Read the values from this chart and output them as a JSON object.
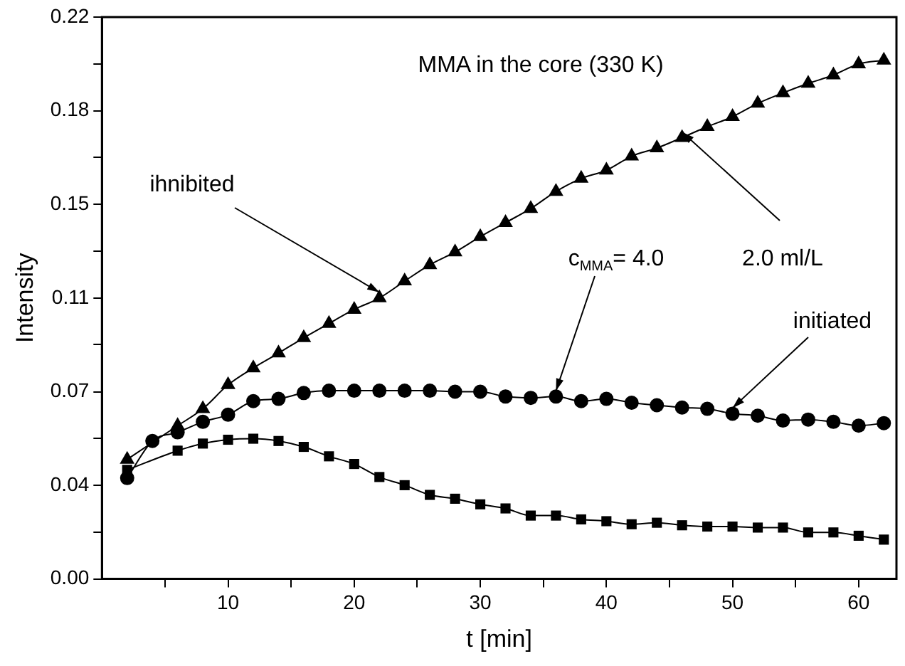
{
  "chart_data": {
    "type": "line",
    "title": "MMA in the core (330 K)",
    "xlabel": "t [min]",
    "ylabel": "Intensity",
    "x": [
      2,
      4,
      6,
      8,
      10,
      12,
      14,
      16,
      18,
      20,
      22,
      24,
      26,
      28,
      30,
      32,
      34,
      36,
      38,
      40,
      42,
      44,
      46,
      48,
      50,
      52,
      54,
      56,
      58,
      60,
      62
    ],
    "series": [
      {
        "color": "#000000",
        "marker": "triangle",
        "values": [
          0.0468,
          null,
          0.06,
          0.0666,
          0.076,
          0.0826,
          0.0884,
          0.0944,
          0.1,
          0.1055,
          0.11,
          0.1166,
          0.123,
          0.128,
          0.134,
          0.1395,
          0.145,
          0.1517,
          0.1568,
          0.16,
          0.1655,
          0.1687,
          0.1728,
          0.1771,
          0.181,
          0.1862,
          0.1903,
          0.194,
          0.1973,
          0.2016,
          0.2031
        ]
      },
      {
        "color": "#000000",
        "marker": "circle",
        "values": [
          0.0395,
          0.054,
          0.0574,
          0.0615,
          0.0643,
          0.0696,
          0.0705,
          0.0728,
          0.0737,
          0.0737,
          0.0737,
          0.0737,
          0.0737,
          0.0733,
          0.0733,
          0.0714,
          0.0709,
          0.0714,
          0.0696,
          0.0705,
          0.069,
          0.068,
          0.0671,
          0.0666,
          0.0647,
          0.0639,
          0.062,
          0.0624,
          0.0615,
          0.06,
          0.061
        ]
      },
      {
        "color": "#000000",
        "marker": "square",
        "values": [
          0.0427,
          null,
          0.0502,
          0.053,
          0.0545,
          0.0549,
          0.054,
          0.0517,
          0.048,
          0.045,
          0.0399,
          0.0367,
          0.0329,
          0.0314,
          0.0292,
          0.0276,
          0.0248,
          0.0248,
          0.0233,
          0.0226,
          0.0214,
          0.022,
          0.021,
          0.0205,
          0.0205,
          0.0201,
          0.0201,
          0.0182,
          0.0182,
          0.0169,
          0.0154
        ]
      }
    ],
    "xlim": [
      0,
      63
    ],
    "xticks": [
      {
        "value": 5,
        "label": null
      },
      10,
      {
        "value": 15,
        "label": null
      },
      20,
      {
        "value": 25,
        "label": null
      },
      30,
      {
        "value": 35,
        "label": null
      },
      40,
      {
        "value": 45,
        "label": null
      },
      50,
      {
        "value": 55,
        "label": null
      },
      60
    ],
    "ylim": [
      0,
      0.22
    ],
    "yticks": [
      {
        "value": 0,
        "label": "0.00"
      },
      {
        "value": 0.0183,
        "label": null
      },
      {
        "value": 0.0367,
        "label": "0.04"
      },
      {
        "value": 0.055,
        "label": null
      },
      {
        "value": 0.0733,
        "label": "0.07"
      },
      {
        "value": 0.0917,
        "label": null
      },
      {
        "value": 0.11,
        "label": "0.11"
      },
      {
        "value": 0.1283,
        "label": null
      },
      {
        "value": 0.1467,
        "label": "0.15"
      },
      {
        "value": 0.165,
        "label": null
      },
      {
        "value": 0.1833,
        "label": "0.18"
      },
      {
        "value": 0.2017,
        "label": null
      },
      {
        "value": 0.22,
        "label": "0.22"
      }
    ],
    "grid": false,
    "legend": false,
    "line_style": "solid",
    "annotations": [
      {
        "text": "ihnibited",
        "x": 22,
        "y": 0.11
      },
      {
        "text": "c$_{MMA}$= 4.0",
        "x": 36,
        "y": 0.0714
      },
      {
        "text": "2.0 ml/L",
        "x": 46,
        "y": 0.1728
      },
      {
        "text": "initiated",
        "x": 50,
        "y": 0.0647
      }
    ]
  }
}
